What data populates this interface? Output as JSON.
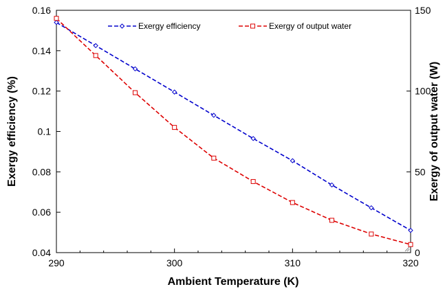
{
  "chart_data": {
    "type": "line",
    "xlabel": "Ambient Temperature (K)",
    "ylabel_left": "Exergy efficiency  (%)",
    "ylabel_right": "Exergy of output water (W)",
    "xlim": [
      290,
      320
    ],
    "ylim_left": [
      0.04,
      0.16
    ],
    "ylim_right": [
      0,
      150
    ],
    "x_ticks": [
      "290",
      "300",
      "310",
      "320"
    ],
    "y_ticks_left": [
      "0.04",
      "0.06",
      "0.08",
      "0.1",
      "0.12",
      "0.14",
      "0.16"
    ],
    "y_ticks_right": [
      "0",
      "50",
      "100",
      "150"
    ],
    "grid": false,
    "legend_position": "top",
    "series": [
      {
        "name": "Exergy efficiency",
        "axis": "left",
        "color": "#0000cc",
        "marker": "diamond",
        "x": [
          290,
          293.33,
          296.67,
          300,
          303.33,
          306.67,
          310,
          313.33,
          316.67,
          320
        ],
        "y": [
          0.154,
          0.1425,
          0.131,
          0.1195,
          0.108,
          0.0965,
          0.0855,
          0.0735,
          0.0622,
          0.051
        ]
      },
      {
        "name": "Exergy of output water",
        "axis": "right",
        "color": "#dd0000",
        "marker": "square",
        "x": [
          290,
          293.33,
          296.67,
          300,
          303.33,
          306.67,
          310,
          313.33,
          316.67,
          320
        ],
        "y": [
          145,
          122,
          99,
          77.5,
          58.5,
          44,
          31,
          20,
          11.5,
          5
        ]
      }
    ]
  }
}
